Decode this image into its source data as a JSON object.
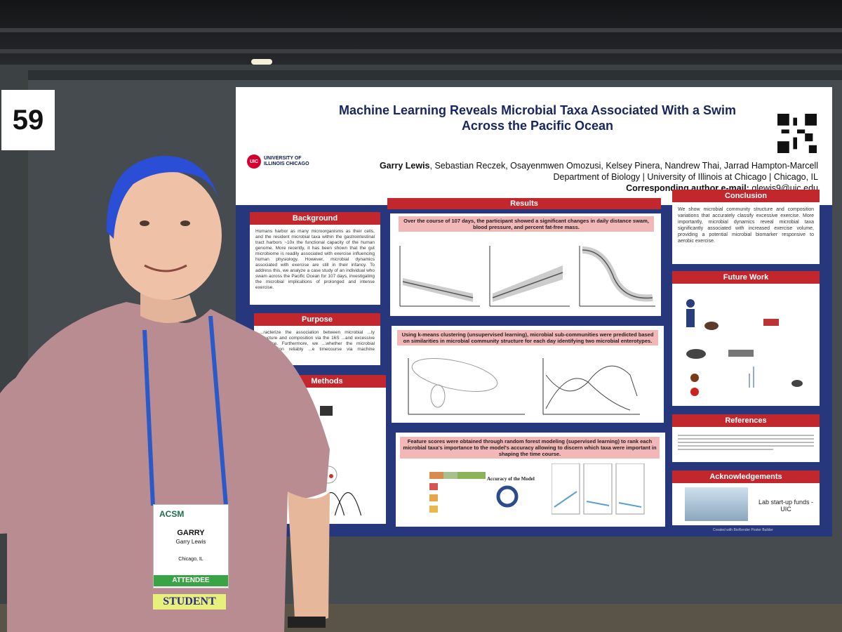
{
  "booth_number": "59",
  "poster": {
    "title": "Machine Learning Reveals Microbial Taxa Associated With a Swim Across the Pacific Ocean",
    "institution_logo": "UNIVERSITY OF ILLINOIS CHICAGO",
    "logo_mark": "UIC",
    "authors_lead": "Garry Lewis",
    "authors_rest": ", Sebastian Reczek, Osayenmwen Omozusi, Kelsey Pinera, Nandrew Thai, Jarrad Hampton-Marcell",
    "affiliation": "Department of Biology | University of Illinois at Chicago | Chicago, IL",
    "corresponding": "Corresponding author e-mail:",
    "email": "glewis9@uic.edu",
    "sections": {
      "background": "Background",
      "background_text": "Humans harbor as many microorganisms as their cells, and the resident microbial taxa within the gastrointestinal tract harbors ~10x the functional capacity of the human genome. More recently, it has been shown that the gut microbiome is readily associated with exercise influencing human physiology. However, microbial dynamics associated with exercise are still in their infancy. To address this, we analyze a case study of an individual who swam across the Pacific Ocean for 107 days, investigating the microbial implications of prolonged and intense exercise.",
      "purpose": "Purpose",
      "purpose_text": "...racterize the association between microbial ...ty structure and composition via the 16S ...and excessive exercise. Furthermore, we ...whether the microbial composition reliably ...e timecourse via machine learning.",
      "methods": "Methods",
      "results": "Results",
      "results_cap1": "Over the course of 107 days, the participant showed a significant changes in daily distance swam, blood pressure, and percent fat-free mass.",
      "results_cap2": "Using k-means clustering (unsupervised learning), microbial sub-communities were predicted based on similarities in microbial community structure for each day identifying two microbial enterotypes.",
      "results_cap3": "Feature scores were obtained through random forest modeling (supervised learning) to rank each microbial taxa's importance to the model's accuracy allowing to discern which taxa were important in shaping the time course.",
      "accuracy_label": "Accuracy of the Model",
      "conclusion": "Conclusion",
      "conclusion_text": "We show microbial community structure and composition variations that accurately classify excessive exercise. More importantly, microbial dynamics reveal microbial taxa significantly associated with increased exercise volume, providing a potential microbial biomarker responsive to aerobic exercise.",
      "future_work": "Future Work",
      "references": "References",
      "acknowledgements": "Acknowledgements",
      "ack_text": "Lab start-up funds - UIC"
    },
    "footer": "Created with BioRender Poster Builder"
  },
  "badge": {
    "org": "ACSM",
    "first_name": "GARRY",
    "full_name": "Garry Lewis",
    "city": "Chicago, IL",
    "role": "ATTENDEE",
    "ribbon": "STUDENT"
  },
  "colors": {
    "hair": "#2a4fd6",
    "shirt": "#b88a8f",
    "poster_navy": "#27377c",
    "section_red": "#c1272d"
  }
}
